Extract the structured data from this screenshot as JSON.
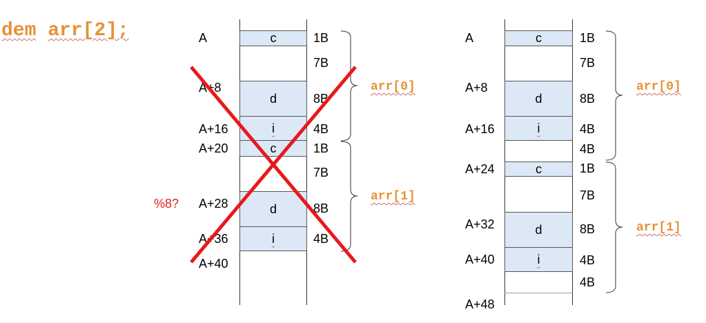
{
  "declaration": {
    "keyword": "dem",
    "rest": "arr[2];"
  },
  "left": {
    "addresses": [
      "A",
      "A+8",
      "A+16",
      "A+20",
      "A+28",
      "A+36",
      "A+40"
    ],
    "boxes": [
      "c",
      "d",
      "i",
      "c",
      "d",
      "i"
    ],
    "sizes": [
      "1B",
      "7B",
      "8B",
      "4B",
      "1B",
      "7B",
      "8B",
      "4B"
    ],
    "brace_labels": [
      "arr[0]",
      "arr[1]"
    ],
    "alignment_note": "%8?",
    "crossed_out": true,
    "cross_color": "#e8181c"
  },
  "right": {
    "addresses": [
      "A",
      "A+8",
      "A+16",
      "A+24",
      "A+32",
      "A+40",
      "A+48"
    ],
    "boxes": [
      "c",
      "d",
      "i",
      "c",
      "d",
      "i"
    ],
    "sizes": [
      "1B",
      "7B",
      "8B",
      "4B",
      "4B",
      "1B",
      "7B",
      "8B",
      "4B",
      "4B"
    ],
    "brace_labels": [
      "arr[0]",
      "arr[1]"
    ]
  },
  "colors": {
    "box_fill": "#dce8f5",
    "code_orange": "#e69138"
  }
}
